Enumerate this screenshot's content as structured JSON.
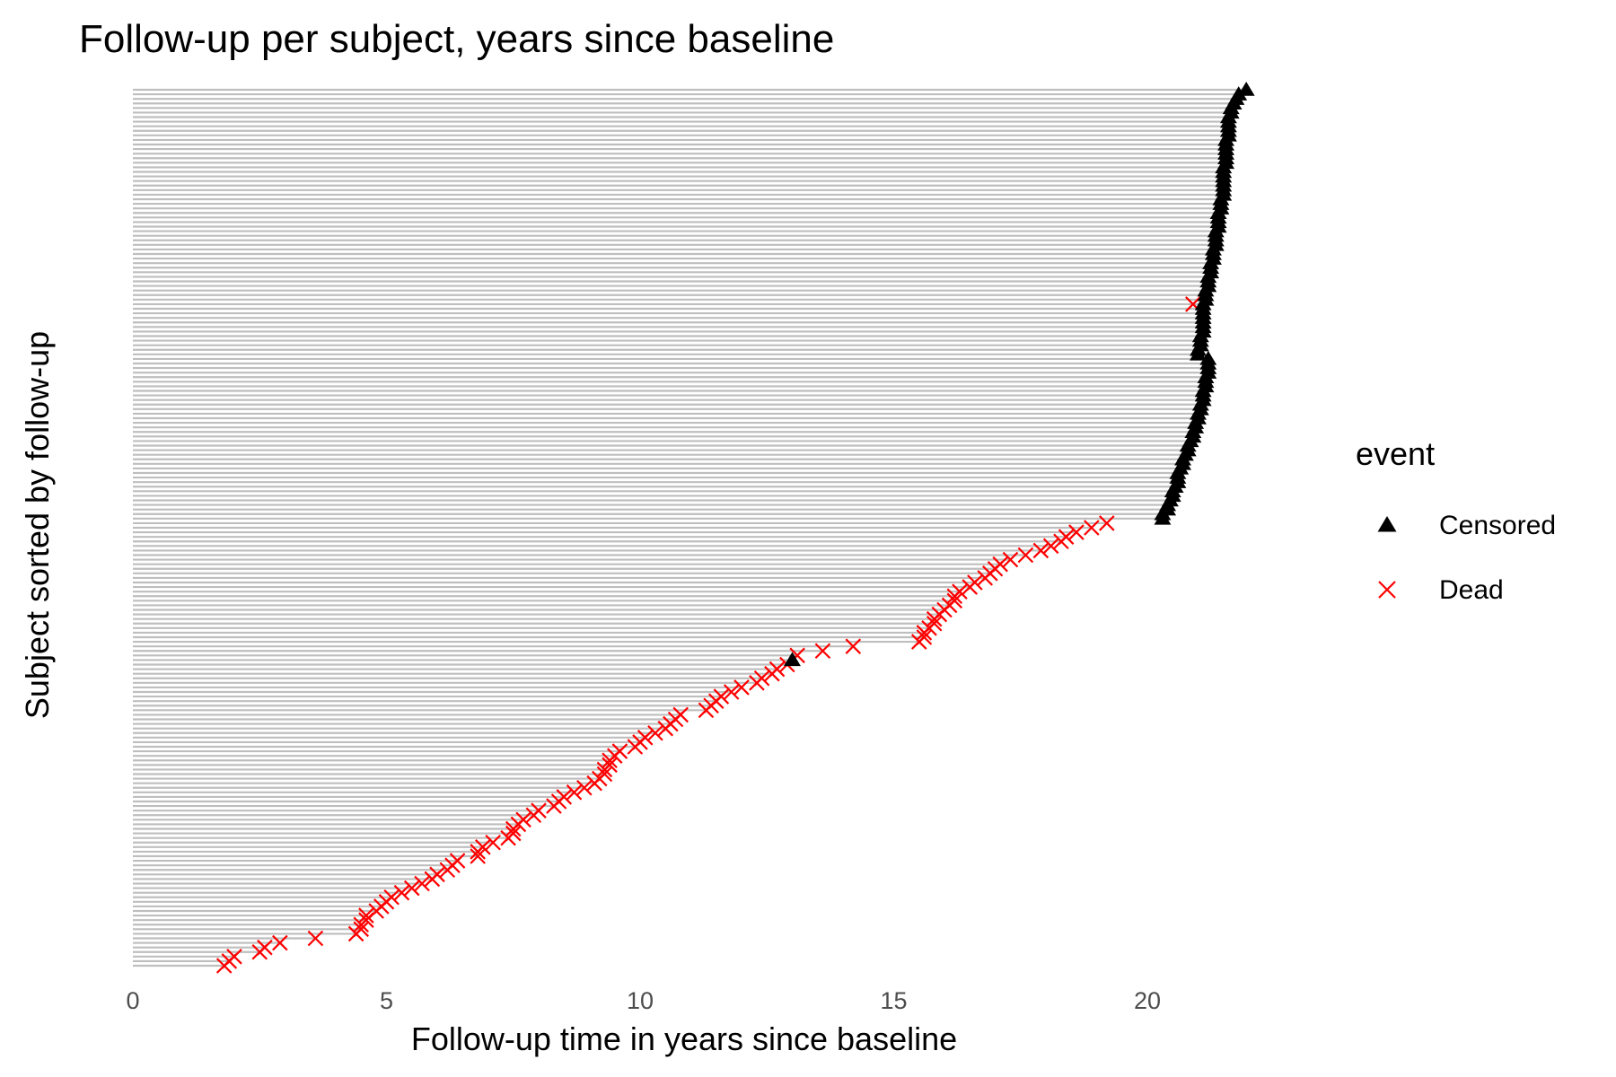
{
  "chart_data": {
    "type": "scatter",
    "title": "Follow-up per subject, years since baseline",
    "xlabel": "Follow-up time in years since baseline",
    "ylabel": "Subject sorted by follow-up",
    "xlim": [
      0,
      22
    ],
    "x_ticks": [
      0,
      5,
      10,
      15,
      20
    ],
    "x_tick_labels": [
      "0",
      "5",
      "10",
      "15",
      "20"
    ],
    "y_ticks_shown": false,
    "grid": false,
    "segment_color": "#bebebe",
    "legend": {
      "title": "event",
      "position": "right",
      "entries": [
        {
          "label": "Censored",
          "shape": "triangle",
          "color": "#000000"
        },
        {
          "label": "Dead",
          "shape": "cross",
          "color": "#ff0000"
        }
      ]
    },
    "subjects_n": 193,
    "series": [
      {
        "name": "Dead",
        "color": "#ff0000",
        "shape": "cross",
        "points": [
          [
            1.8,
            1
          ],
          [
            1.9,
            2
          ],
          [
            2.0,
            3
          ],
          [
            2.5,
            4
          ],
          [
            2.6,
            5
          ],
          [
            2.9,
            6
          ],
          [
            3.6,
            7
          ],
          [
            4.4,
            8
          ],
          [
            4.5,
            9
          ],
          [
            4.5,
            10
          ],
          [
            4.6,
            11
          ],
          [
            4.6,
            12
          ],
          [
            4.8,
            13
          ],
          [
            4.9,
            14
          ],
          [
            5.0,
            15
          ],
          [
            5.1,
            16
          ],
          [
            5.3,
            17
          ],
          [
            5.5,
            18
          ],
          [
            5.7,
            19
          ],
          [
            5.9,
            20
          ],
          [
            6.0,
            21
          ],
          [
            6.2,
            22
          ],
          [
            6.3,
            23
          ],
          [
            6.4,
            24
          ],
          [
            6.8,
            25
          ],
          [
            6.8,
            26
          ],
          [
            6.9,
            27
          ],
          [
            7.1,
            28
          ],
          [
            7.4,
            29
          ],
          [
            7.5,
            30
          ],
          [
            7.5,
            31
          ],
          [
            7.6,
            32
          ],
          [
            7.7,
            33
          ],
          [
            7.9,
            34
          ],
          [
            8.0,
            35
          ],
          [
            8.3,
            36
          ],
          [
            8.4,
            37
          ],
          [
            8.5,
            38
          ],
          [
            8.7,
            39
          ],
          [
            8.9,
            40
          ],
          [
            9.1,
            41
          ],
          [
            9.2,
            42
          ],
          [
            9.3,
            43
          ],
          [
            9.3,
            44
          ],
          [
            9.4,
            45
          ],
          [
            9.4,
            46
          ],
          [
            9.5,
            47
          ],
          [
            9.6,
            48
          ],
          [
            9.9,
            49
          ],
          [
            10.0,
            50
          ],
          [
            10.1,
            51
          ],
          [
            10.3,
            52
          ],
          [
            10.5,
            53
          ],
          [
            10.6,
            54
          ],
          [
            10.7,
            55
          ],
          [
            10.8,
            56
          ],
          [
            11.3,
            57
          ],
          [
            11.4,
            58
          ],
          [
            11.5,
            59
          ],
          [
            11.6,
            60
          ],
          [
            11.8,
            61
          ],
          [
            12.0,
            62
          ],
          [
            12.3,
            63
          ],
          [
            12.4,
            64
          ],
          [
            12.6,
            65
          ],
          [
            12.7,
            66
          ],
          [
            12.9,
            67
          ],
          [
            13.1,
            69
          ],
          [
            13.6,
            70
          ],
          [
            14.2,
            71
          ],
          [
            15.5,
            72
          ],
          [
            15.6,
            73
          ],
          [
            15.6,
            74
          ],
          [
            15.7,
            75
          ],
          [
            15.8,
            76
          ],
          [
            15.8,
            77
          ],
          [
            15.9,
            78
          ],
          [
            16.0,
            79
          ],
          [
            16.1,
            80
          ],
          [
            16.2,
            81
          ],
          [
            16.2,
            82
          ],
          [
            16.3,
            83
          ],
          [
            16.5,
            84
          ],
          [
            16.6,
            85
          ],
          [
            16.8,
            86
          ],
          [
            16.9,
            87
          ],
          [
            17.0,
            88
          ],
          [
            17.1,
            89
          ],
          [
            17.3,
            90
          ],
          [
            17.6,
            91
          ],
          [
            17.9,
            92
          ],
          [
            18.1,
            93
          ],
          [
            18.3,
            94
          ],
          [
            18.4,
            95
          ],
          [
            18.6,
            96
          ],
          [
            18.9,
            97
          ],
          [
            19.2,
            98
          ],
          [
            20.9,
            146
          ]
        ]
      },
      {
        "name": "Censored",
        "color": "#000000",
        "shape": "triangle",
        "points": [
          [
            13.0,
            68
          ],
          [
            20.3,
            99
          ],
          [
            20.3,
            100
          ],
          [
            20.4,
            101
          ],
          [
            20.4,
            102
          ],
          [
            20.45,
            103
          ],
          [
            20.5,
            104
          ],
          [
            20.5,
            105
          ],
          [
            20.55,
            106
          ],
          [
            20.6,
            107
          ],
          [
            20.6,
            108
          ],
          [
            20.6,
            109
          ],
          [
            20.65,
            110
          ],
          [
            20.7,
            111
          ],
          [
            20.7,
            112
          ],
          [
            20.75,
            113
          ],
          [
            20.8,
            114
          ],
          [
            20.8,
            115
          ],
          [
            20.85,
            116
          ],
          [
            20.9,
            117
          ],
          [
            20.9,
            118
          ],
          [
            20.95,
            119
          ],
          [
            20.95,
            120
          ],
          [
            21.0,
            121
          ],
          [
            21.0,
            122
          ],
          [
            21.05,
            123
          ],
          [
            21.05,
            124
          ],
          [
            21.1,
            125
          ],
          [
            21.1,
            126
          ],
          [
            21.1,
            127
          ],
          [
            21.15,
            128
          ],
          [
            21.15,
            129
          ],
          [
            21.15,
            130
          ],
          [
            21.2,
            131
          ],
          [
            21.2,
            132
          ],
          [
            21.2,
            133
          ],
          [
            21.2,
            134
          ],
          [
            21.0,
            135
          ],
          [
            21.0,
            136
          ],
          [
            21.05,
            137
          ],
          [
            21.05,
            138
          ],
          [
            21.05,
            139
          ],
          [
            21.1,
            140
          ],
          [
            21.1,
            141
          ],
          [
            21.1,
            142
          ],
          [
            21.1,
            143
          ],
          [
            21.1,
            144
          ],
          [
            21.1,
            145
          ],
          [
            21.1,
            146
          ],
          [
            21.15,
            147
          ],
          [
            21.15,
            148
          ],
          [
            21.15,
            149
          ],
          [
            21.2,
            150
          ],
          [
            21.2,
            151
          ],
          [
            21.2,
            152
          ],
          [
            21.25,
            153
          ],
          [
            21.25,
            154
          ],
          [
            21.25,
            155
          ],
          [
            21.3,
            156
          ],
          [
            21.3,
            157
          ],
          [
            21.3,
            158
          ],
          [
            21.35,
            159
          ],
          [
            21.35,
            160
          ],
          [
            21.35,
            161
          ],
          [
            21.35,
            162
          ],
          [
            21.4,
            163
          ],
          [
            21.4,
            164
          ],
          [
            21.4,
            165
          ],
          [
            21.4,
            166
          ],
          [
            21.45,
            167
          ],
          [
            21.45,
            168
          ],
          [
            21.45,
            169
          ],
          [
            21.5,
            170
          ],
          [
            21.5,
            171
          ],
          [
            21.5,
            172
          ],
          [
            21.5,
            173
          ],
          [
            21.5,
            174
          ],
          [
            21.5,
            175
          ],
          [
            21.5,
            176
          ],
          [
            21.55,
            177
          ],
          [
            21.55,
            178
          ],
          [
            21.55,
            179
          ],
          [
            21.55,
            180
          ],
          [
            21.55,
            181
          ],
          [
            21.55,
            182
          ],
          [
            21.6,
            183
          ],
          [
            21.6,
            184
          ],
          [
            21.6,
            185
          ],
          [
            21.6,
            186
          ],
          [
            21.6,
            187
          ],
          [
            21.65,
            188
          ],
          [
            21.65,
            189
          ],
          [
            21.7,
            190
          ],
          [
            21.75,
            191
          ],
          [
            21.8,
            192
          ],
          [
            21.95,
            193
          ]
        ]
      }
    ]
  }
}
